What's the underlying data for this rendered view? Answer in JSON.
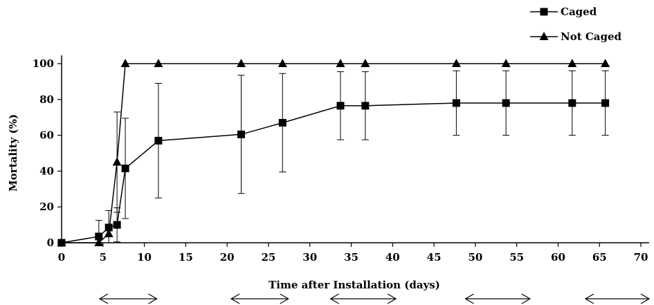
{
  "chart_data": {
    "type": "line",
    "xlabel": "Time after Installation (days)",
    "ylabel": "Mortality (%)",
    "xlim": [
      0,
      71
    ],
    "ylim": [
      0,
      100
    ],
    "xticks": [
      0,
      5,
      10,
      15,
      20,
      25,
      30,
      35,
      40,
      45,
      50,
      55,
      60,
      65,
      70
    ],
    "yticks": [
      0,
      20,
      40,
      60,
      80,
      100
    ],
    "grid": false,
    "legend_position": "top-right",
    "series": [
      {
        "name": "Caged",
        "marker": "square",
        "color": "#000000",
        "x": [
          0,
          4.5,
          5.7,
          6.7,
          7.7,
          11.7,
          21.7,
          26.7,
          33.7,
          36.7,
          47.7,
          53.7,
          61.7,
          65.7
        ],
        "y": [
          0,
          3.5,
          8.5,
          10,
          41.5,
          57,
          60.5,
          67,
          76.5,
          76.5,
          78,
          78,
          78,
          78
        ],
        "error": [
          0,
          9,
          9.5,
          9.5,
          28,
          32,
          33,
          27.5,
          19,
          19,
          18,
          18,
          18,
          18
        ]
      },
      {
        "name": "Not Caged",
        "marker": "triangle",
        "color": "#000000",
        "x": [
          0,
          4.5,
          5.7,
          6.7,
          7.7,
          11.7,
          21.7,
          26.7,
          33.7,
          36.7,
          47.7,
          53.7,
          61.7,
          65.7
        ],
        "y": [
          0,
          0,
          5,
          45,
          100,
          100,
          100,
          100,
          100,
          100,
          100,
          100,
          100,
          100
        ],
        "error": [
          0,
          0,
          0,
          28,
          0,
          0,
          0,
          0,
          0,
          0,
          0,
          0,
          0,
          0
        ]
      }
    ]
  }
}
